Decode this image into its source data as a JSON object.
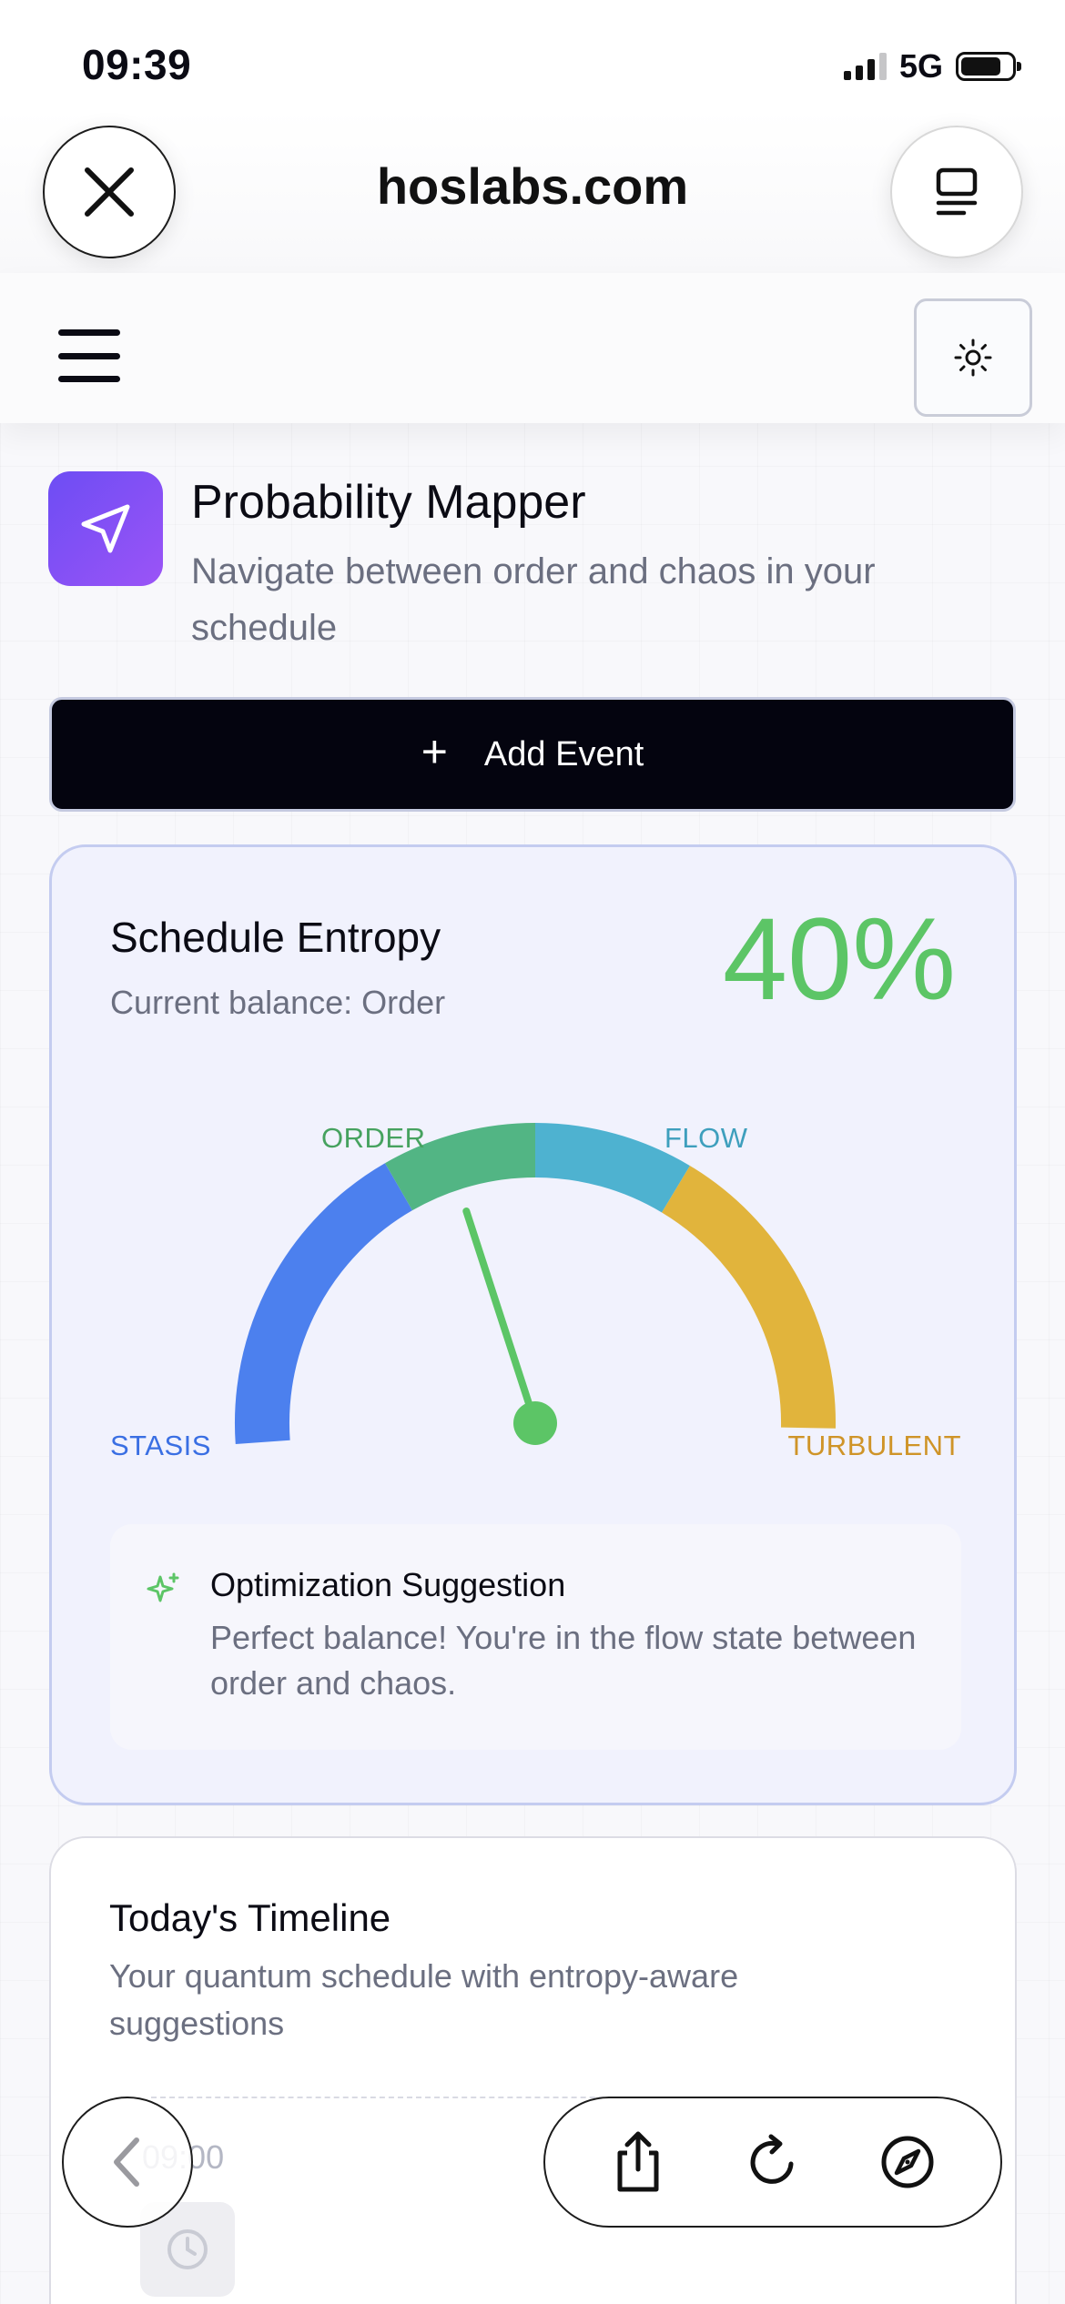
{
  "status_bar": {
    "time": "09:39",
    "network": "5G"
  },
  "browser": {
    "url": "hoslabs.com"
  },
  "header": {
    "title": "Probability Mapper",
    "subtitle": "Navigate between order and chaos in your schedule"
  },
  "actions": {
    "add_event_label": "Add Event",
    "add_event_icon": "plus-icon"
  },
  "entropy": {
    "title": "Schedule Entropy",
    "balance_text": "Current balance: Order",
    "percent_text": "40%",
    "value": 40,
    "labels": {
      "order": "ORDER",
      "flow": "FLOW",
      "stasis": "STASIS",
      "turbulent": "TURBULENT"
    },
    "colors": {
      "stasis": "#4c80ee",
      "order": "#52b584",
      "flow": "#4eb2d0",
      "turbulent": "#e1b43c",
      "needle": "#5cc566"
    }
  },
  "suggestion": {
    "title": "Optimization Suggestion",
    "body": "Perfect balance! You're in the flow state between order and chaos."
  },
  "timeline": {
    "title": "Today's Timeline",
    "subtitle": "Your quantum schedule with entropy-aware suggestions",
    "first_time": "09:00"
  }
}
